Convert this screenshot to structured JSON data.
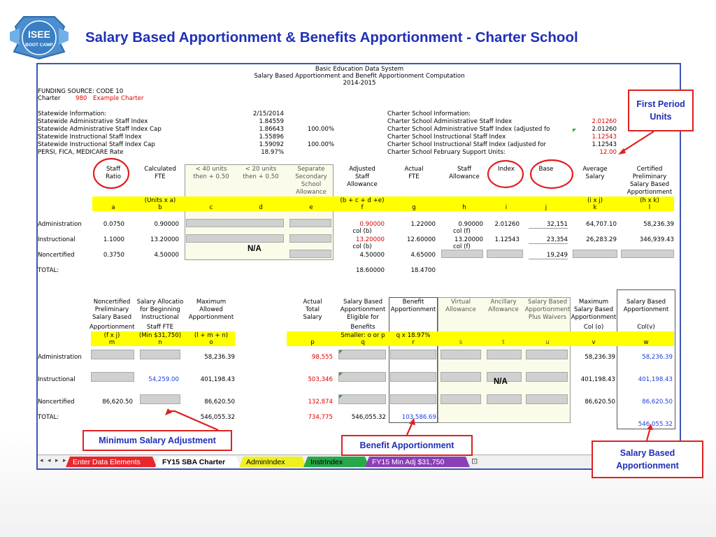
{
  "logo": {
    "line1": "ISEE",
    "line2": "BOOT CAMP",
    "icon": "isee-bootcamp-badge"
  },
  "slide_title": "Salary Based Apportionment & Benefits Apportionment -  Charter School",
  "sheet": {
    "heading1": "Basic Education Data System",
    "heading2": "Salary Based Apportionment and Benefit Apportionment Computation",
    "heading3": "2014-2015",
    "funding_source": "FUNDING SOURCE: CODE 10",
    "charter_label": "Charter",
    "charter_number": "980",
    "charter_name": "Example Charter",
    "statewide": {
      "header": "Statewide Information:",
      "header_date": "2/15/2014",
      "rows": [
        {
          "label": "Statewide Administrative Staff Index",
          "value": "1.84559",
          "pct": ""
        },
        {
          "label": "Statewide Administrative Staff Index Cap",
          "value": "1.86643",
          "pct": "100.00%"
        },
        {
          "label": "Statewide Instructional Staff Index",
          "value": "1.55896",
          "pct": ""
        },
        {
          "label": "Statewide Instructional Staff Index Cap",
          "value": "1.59092",
          "pct": "100.00%"
        },
        {
          "label": "PERSI, FICA, MEDICARE Rate",
          "value": "18.97%",
          "pct": ""
        }
      ]
    },
    "charter_info": {
      "header": "Charter School Information:",
      "rows": [
        {
          "label": "Charter School Administrative Staff Index",
          "value": "2.01260"
        },
        {
          "label": "Charter School Administrative Staff Index (adjusted fo",
          "value": "2.01260"
        },
        {
          "label": "Charter School Instructional Staff Index",
          "value": "1.12543"
        },
        {
          "label": "Charter School Instructional Staff Index (adjusted for",
          "value": "1.12543"
        },
        {
          "label": "Charter School February Support Units:",
          "value": "12.00"
        }
      ]
    },
    "top_table": {
      "headers": {
        "staff_ratio": [
          "Staff",
          "Ratio"
        ],
        "calc_fte": [
          "Calculated",
          "FTE"
        ],
        "lt40": [
          "< 40 units",
          "then + 0.50"
        ],
        "lt20": [
          "< 20 units",
          "then + 0.50"
        ],
        "separate": [
          "Separate",
          "Secondary",
          "School",
          "Allowance"
        ],
        "adjusted": [
          "Adjusted",
          "Staff",
          "Allowance"
        ],
        "actual_fte": [
          "Actual",
          "FTE"
        ],
        "staff_allow": [
          "Staff",
          "Allowance"
        ],
        "index": "Index",
        "base": "Base",
        "avg_salary": [
          "Average",
          "Salary"
        ],
        "certified": [
          "Certified",
          "Preliminary",
          "Salary Based",
          "Apportionment"
        ]
      },
      "formulas": {
        "b": "(Units x a)",
        "f": "(b + c + d +e)",
        "k": "(i x j)",
        "l": "(h x k)"
      },
      "letters": [
        "a",
        "b",
        "c",
        "d",
        "e",
        "f",
        "g",
        "h",
        "i",
        "j",
        "k",
        "l"
      ],
      "rows": [
        {
          "label": "Administration",
          "a": "0.0750",
          "b": "0.90000",
          "f": "0.90000",
          "f_sub": "col (b)",
          "g": "1.22000",
          "h": "0.90000",
          "h_sub": "col (f)",
          "i": "2.01260",
          "j": "32,151",
          "k": "64,707.10",
          "l": "58,236.39"
        },
        {
          "label": "Instructional",
          "a": "1.1000",
          "b": "13.20000",
          "f": "13.20000",
          "f_sub": "col (b)",
          "g": "12.60000",
          "h": "13.20000",
          "h_sub": "col (f)",
          "i": "1.12543",
          "j": "23,354",
          "k": "26,283.29",
          "l": "346,939.43"
        },
        {
          "label": "Noncertified",
          "a": "0.3750",
          "b": "4.50000",
          "f": "4.50000",
          "f_sub": "",
          "g": "4.65000",
          "h": "",
          "h_sub": "",
          "i": "",
          "j": "19,249",
          "k": "",
          "l": ""
        }
      ],
      "total_label": "TOTAL:",
      "total_f": "18.60000",
      "total_g": "18.4700",
      "na": "N/A"
    },
    "bottom_table": {
      "headers": {
        "m": [
          "Noncertified",
          "Preliminary",
          "Salary Based",
          "Apportionment"
        ],
        "n": [
          "Salary Allocatio",
          "for Beginning",
          "Instructional",
          "Staff FTE"
        ],
        "o": [
          "Maximum",
          "Allowed",
          "Apportionment"
        ],
        "p": [
          "Actual",
          "Total",
          "Salary"
        ],
        "q": [
          "Salary Based",
          "Apportionment",
          "Eligible for",
          "Benefits"
        ],
        "r": [
          "Benefit",
          "Apportionment"
        ],
        "s": [
          "Virtual",
          "Allowance"
        ],
        "t": [
          "Ancillary",
          "Allowance"
        ],
        "u": [
          "Salary Based",
          "Apportionment",
          "Plus Waivers"
        ],
        "v": [
          "Maximum",
          "Salary Based",
          "Apportionment",
          "Col (o)"
        ],
        "w": [
          "Salary Based",
          "Apportionment",
          "",
          "Col(v)"
        ]
      },
      "formulas": {
        "m": "(f x j)",
        "n": "(Min $31,750)",
        "o": "(l + m + n)",
        "q": "Smaller: o or p",
        "r": "q x 18.97%"
      },
      "letters": [
        "m",
        "n",
        "o",
        "p",
        "q",
        "r",
        "s",
        "t",
        "u",
        "v",
        "w"
      ],
      "rows": [
        {
          "label": "Administration",
          "m": "",
          "n": "",
          "o": "58,236.39",
          "p": "98,555",
          "v": "58,236.39",
          "w": "58,236.39"
        },
        {
          "label": "Instructional",
          "m": "",
          "n": "54,259.00",
          "o": "401,198.43",
          "p": "503,346",
          "v": "401,198.43",
          "w": "401,198.43"
        },
        {
          "label": "Noncertified",
          "m": "86,620.50",
          "n": "",
          "o": "86,620.50",
          "p": "132,874",
          "v": "86,620.50",
          "w": "86,620.50"
        }
      ],
      "total_label": "TOTAL:",
      "total_o": "546,055.32",
      "total_p": "734,775",
      "total_q": "546,055.32",
      "total_r": "103,586.69",
      "total_w": "546,055.32",
      "na": "N/A"
    },
    "tabs": [
      {
        "label": "Enter Data Elements",
        "color": "#e8262b"
      },
      {
        "label": "FY15 SBA Charter",
        "color": "#ffffff"
      },
      {
        "label": "AdminIndex",
        "color": "#f0f020"
      },
      {
        "label": "InstrIndex",
        "color": "#29a84a"
      },
      {
        "label": "FY15 Min Adj $31,750",
        "color": "#8a3fb5"
      }
    ]
  },
  "callouts": {
    "first_period": "First Period Units",
    "minimum_salary": "Minimum  Salary Adjustment",
    "benefit": "Benefit Apportionment",
    "salary_based": "Salary Based Apportionment"
  },
  "colors": {
    "title": "#1f2fb8",
    "callout_border": "#e02020",
    "highlight": "#ffff00",
    "red_value": "#e00000",
    "blue_value": "#1a3fe0"
  }
}
